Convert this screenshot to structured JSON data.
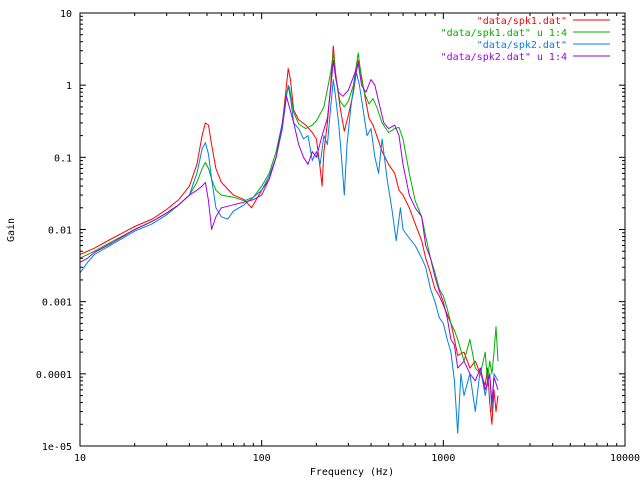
{
  "chart_data": {
    "type": "line",
    "xlabel": "Frequency (Hz)",
    "ylabel": "Gain",
    "xscale": "log",
    "yscale": "log",
    "xlim": [
      10,
      10000
    ],
    "ylim": [
      1e-05,
      10
    ],
    "grid": false,
    "legend_position": "top-right",
    "x_ticks": [
      {
        "value": 10,
        "label": "10"
      },
      {
        "value": 100,
        "label": "100"
      },
      {
        "value": 1000,
        "label": "1000"
      },
      {
        "value": 10000,
        "label": "10000"
      }
    ],
    "y_ticks": [
      {
        "value": 1e-05,
        "label": "1e-05"
      },
      {
        "value": 0.0001,
        "label": "0.0001"
      },
      {
        "value": 0.001,
        "label": "0.001"
      },
      {
        "value": 0.01,
        "label": "0.01"
      },
      {
        "value": 0.1,
        "label": "0.1"
      },
      {
        "value": 1,
        "label": "1"
      },
      {
        "value": 10,
        "label": "10"
      }
    ],
    "series": [
      {
        "name": "\"data/spk1.dat\"",
        "color": "#ff0000",
        "points": [
          [
            10,
            0.0045
          ],
          [
            12,
            0.0055
          ],
          [
            15,
            0.0075
          ],
          [
            20,
            0.011
          ],
          [
            25,
            0.014
          ],
          [
            30,
            0.019
          ],
          [
            35,
            0.026
          ],
          [
            40,
            0.04
          ],
          [
            44,
            0.08
          ],
          [
            47,
            0.2
          ],
          [
            49,
            0.3
          ],
          [
            51,
            0.28
          ],
          [
            53,
            0.15
          ],
          [
            56,
            0.07
          ],
          [
            60,
            0.045
          ],
          [
            70,
            0.03
          ],
          [
            80,
            0.026
          ],
          [
            88,
            0.02
          ],
          [
            100,
            0.035
          ],
          [
            110,
            0.05
          ],
          [
            120,
            0.1
          ],
          [
            130,
            0.3
          ],
          [
            137,
            1.0
          ],
          [
            140,
            1.7
          ],
          [
            144,
            1.2
          ],
          [
            150,
            0.45
          ],
          [
            160,
            0.33
          ],
          [
            175,
            0.28
          ],
          [
            190,
            0.22
          ],
          [
            200,
            0.18
          ],
          [
            210,
            0.07
          ],
          [
            215,
            0.04
          ],
          [
            220,
            0.12
          ],
          [
            230,
            0.3
          ],
          [
            240,
            1.0
          ],
          [
            248,
            3.5
          ],
          [
            255,
            1.5
          ],
          [
            270,
            0.5
          ],
          [
            285,
            0.23
          ],
          [
            300,
            0.38
          ],
          [
            320,
            0.8
          ],
          [
            340,
            2.2
          ],
          [
            350,
            1.6
          ],
          [
            370,
            0.7
          ],
          [
            390,
            0.35
          ],
          [
            410,
            0.28
          ],
          [
            430,
            0.2
          ],
          [
            460,
            0.12
          ],
          [
            500,
            0.08
          ],
          [
            540,
            0.06
          ],
          [
            570,
            0.035
          ],
          [
            600,
            0.03
          ],
          [
            650,
            0.02
          ],
          [
            700,
            0.012
          ],
          [
            760,
            0.007
          ],
          [
            800,
            0.004
          ],
          [
            850,
            0.0025
          ],
          [
            900,
            0.0015
          ],
          [
            950,
            0.0012
          ],
          [
            1000,
            0.0009
          ],
          [
            1100,
            0.0005
          ],
          [
            1150,
            0.0003
          ],
          [
            1200,
            0.00018
          ],
          [
            1300,
            0.0002
          ],
          [
            1400,
            0.00012
          ],
          [
            1500,
            0.00015
          ],
          [
            1600,
            0.0001
          ],
          [
            1700,
            7e-05
          ],
          [
            1750,
            0.00012
          ],
          [
            1800,
            4e-05
          ],
          [
            1850,
            2e-05
          ],
          [
            1900,
            6e-05
          ],
          [
            1950,
            3e-05
          ],
          [
            2000,
            5e-05
          ]
        ]
      },
      {
        "name": "\"data/spk1.dat\" u 1:4",
        "color": "#00b000",
        "points": [
          [
            10,
            0.004
          ],
          [
            12,
            0.005
          ],
          [
            15,
            0.0068
          ],
          [
            20,
            0.01
          ],
          [
            25,
            0.013
          ],
          [
            30,
            0.017
          ],
          [
            35,
            0.022
          ],
          [
            40,
            0.03
          ],
          [
            44,
            0.045
          ],
          [
            47,
            0.07
          ],
          [
            49,
            0.085
          ],
          [
            51,
            0.07
          ],
          [
            53,
            0.05
          ],
          [
            56,
            0.035
          ],
          [
            60,
            0.03
          ],
          [
            70,
            0.028
          ],
          [
            80,
            0.025
          ],
          [
            90,
            0.028
          ],
          [
            100,
            0.04
          ],
          [
            110,
            0.06
          ],
          [
            120,
            0.12
          ],
          [
            130,
            0.3
          ],
          [
            137,
            0.8
          ],
          [
            142,
            0.95
          ],
          [
            150,
            0.42
          ],
          [
            160,
            0.29
          ],
          [
            175,
            0.25
          ],
          [
            190,
            0.28
          ],
          [
            200,
            0.32
          ],
          [
            220,
            0.5
          ],
          [
            240,
            1.5
          ],
          [
            248,
            2.8
          ],
          [
            255,
            1.3
          ],
          [
            270,
            0.6
          ],
          [
            285,
            0.5
          ],
          [
            300,
            0.6
          ],
          [
            320,
            1.0
          ],
          [
            340,
            2.8
          ],
          [
            355,
            1.2
          ],
          [
            370,
            0.75
          ],
          [
            390,
            0.55
          ],
          [
            410,
            0.65
          ],
          [
            430,
            0.5
          ],
          [
            460,
            0.3
          ],
          [
            500,
            0.22
          ],
          [
            540,
            0.25
          ],
          [
            570,
            0.26
          ],
          [
            600,
            0.18
          ],
          [
            650,
            0.06
          ],
          [
            700,
            0.025
          ],
          [
            760,
            0.015
          ],
          [
            800,
            0.008
          ],
          [
            850,
            0.004
          ],
          [
            900,
            0.0025
          ],
          [
            950,
            0.0015
          ],
          [
            1000,
            0.0012
          ],
          [
            1050,
            0.0008
          ],
          [
            1100,
            0.0005
          ],
          [
            1150,
            0.0004
          ],
          [
            1200,
            0.0003
          ],
          [
            1300,
            0.00015
          ],
          [
            1400,
            0.0003
          ],
          [
            1500,
            0.00012
          ],
          [
            1600,
            0.0001
          ],
          [
            1700,
            0.0002
          ],
          [
            1750,
            8e-05
          ],
          [
            1800,
            0.00015
          ],
          [
            1850,
            0.0001
          ],
          [
            1900,
            0.0002
          ],
          [
            1950,
            0.00045
          ],
          [
            2000,
            0.00015
          ]
        ]
      },
      {
        "name": "\"data/spk2.dat\"",
        "color": "#0080e0",
        "points": [
          [
            10,
            0.0025
          ],
          [
            11,
            0.0035
          ],
          [
            12,
            0.0045
          ],
          [
            15,
            0.0062
          ],
          [
            20,
            0.0095
          ],
          [
            25,
            0.012
          ],
          [
            30,
            0.016
          ],
          [
            35,
            0.022
          ],
          [
            40,
            0.03
          ],
          [
            44,
            0.06
          ],
          [
            47,
            0.13
          ],
          [
            49,
            0.16
          ],
          [
            51,
            0.11
          ],
          [
            53,
            0.05
          ],
          [
            56,
            0.02
          ],
          [
            60,
            0.015
          ],
          [
            65,
            0.014
          ],
          [
            70,
            0.018
          ],
          [
            80,
            0.022
          ],
          [
            90,
            0.028
          ],
          [
            100,
            0.035
          ],
          [
            110,
            0.055
          ],
          [
            120,
            0.1
          ],
          [
            130,
            0.25
          ],
          [
            137,
            0.7
          ],
          [
            140,
            1.0
          ],
          [
            145,
            0.6
          ],
          [
            150,
            0.3
          ],
          [
            160,
            0.25
          ],
          [
            170,
            0.18
          ],
          [
            180,
            0.2
          ],
          [
            190,
            0.09
          ],
          [
            200,
            0.12
          ],
          [
            210,
            0.08
          ],
          [
            220,
            0.2
          ],
          [
            230,
            0.15
          ],
          [
            240,
            0.5
          ],
          [
            248,
            1.2
          ],
          [
            255,
            0.7
          ],
          [
            265,
            0.3
          ],
          [
            275,
            0.1
          ],
          [
            285,
            0.03
          ],
          [
            295,
            0.15
          ],
          [
            310,
            0.5
          ],
          [
            330,
            1.6
          ],
          [
            345,
            1.0
          ],
          [
            360,
            0.5
          ],
          [
            380,
            0.2
          ],
          [
            400,
            0.25
          ],
          [
            420,
            0.1
          ],
          [
            440,
            0.06
          ],
          [
            460,
            0.18
          ],
          [
            490,
            0.05
          ],
          [
            520,
            0.02
          ],
          [
            550,
            0.007
          ],
          [
            580,
            0.02
          ],
          [
            600,
            0.01
          ],
          [
            640,
            0.008
          ],
          [
            700,
            0.006
          ],
          [
            760,
            0.004
          ],
          [
            800,
            0.003
          ],
          [
            850,
            0.0015
          ],
          [
            900,
            0.001
          ],
          [
            950,
            0.0006
          ],
          [
            1000,
            0.0005
          ],
          [
            1050,
            0.0003
          ],
          [
            1100,
            0.0002
          ],
          [
            1150,
            8e-05
          ],
          [
            1200,
            1.5e-05
          ],
          [
            1250,
            0.0001
          ],
          [
            1300,
            5e-05
          ],
          [
            1400,
            0.0001
          ],
          [
            1500,
            3e-05
          ],
          [
            1600,
            0.00012
          ],
          [
            1700,
            5e-05
          ],
          [
            1800,
            0.0001
          ],
          [
            1850,
            3e-05
          ],
          [
            1900,
            0.0001
          ],
          [
            2000,
            8e-05
          ]
        ]
      },
      {
        "name": "\"data/spk2.dat\" u 1:4",
        "color": "#a000e0",
        "points": [
          [
            10,
            0.0035
          ],
          [
            11,
            0.004
          ],
          [
            12,
            0.0048
          ],
          [
            15,
            0.0065
          ],
          [
            20,
            0.01
          ],
          [
            25,
            0.013
          ],
          [
            30,
            0.017
          ],
          [
            35,
            0.022
          ],
          [
            40,
            0.03
          ],
          [
            44,
            0.035
          ],
          [
            47,
            0.04
          ],
          [
            49,
            0.045
          ],
          [
            51,
            0.025
          ],
          [
            53,
            0.01
          ],
          [
            56,
            0.015
          ],
          [
            60,
            0.02
          ],
          [
            70,
            0.022
          ],
          [
            80,
            0.024
          ],
          [
            90,
            0.026
          ],
          [
            100,
            0.03
          ],
          [
            110,
            0.05
          ],
          [
            120,
            0.1
          ],
          [
            130,
            0.3
          ],
          [
            137,
            0.7
          ],
          [
            142,
            0.5
          ],
          [
            150,
            0.3
          ],
          [
            160,
            0.15
          ],
          [
            170,
            0.1
          ],
          [
            180,
            0.08
          ],
          [
            190,
            0.12
          ],
          [
            200,
            0.1
          ],
          [
            215,
            0.2
          ],
          [
            230,
            0.35
          ],
          [
            240,
            0.9
          ],
          [
            248,
            2.2
          ],
          [
            255,
            1.3
          ],
          [
            265,
            0.8
          ],
          [
            280,
            0.7
          ],
          [
            300,
            0.85
          ],
          [
            320,
            1.3
          ],
          [
            340,
            2.0
          ],
          [
            355,
            1.0
          ],
          [
            375,
            0.8
          ],
          [
            400,
            1.2
          ],
          [
            420,
            1.0
          ],
          [
            440,
            0.6
          ],
          [
            470,
            0.3
          ],
          [
            500,
            0.25
          ],
          [
            540,
            0.28
          ],
          [
            570,
            0.2
          ],
          [
            600,
            0.08
          ],
          [
            650,
            0.03
          ],
          [
            700,
            0.02
          ],
          [
            760,
            0.015
          ],
          [
            800,
            0.006
          ],
          [
            850,
            0.004
          ],
          [
            900,
            0.0022
          ],
          [
            950,
            0.0014
          ],
          [
            1000,
            0.001
          ],
          [
            1050,
            0.0006
          ],
          [
            1100,
            0.0003
          ],
          [
            1150,
            0.00025
          ],
          [
            1200,
            0.00012
          ],
          [
            1300,
            0.00015
          ],
          [
            1400,
            0.0001
          ],
          [
            1500,
            8e-05
          ],
          [
            1600,
            0.00012
          ],
          [
            1700,
            6e-05
          ],
          [
            1800,
            0.0001
          ],
          [
            1850,
            4e-05
          ],
          [
            1900,
            9e-05
          ],
          [
            2000,
            6e-05
          ]
        ]
      }
    ]
  }
}
